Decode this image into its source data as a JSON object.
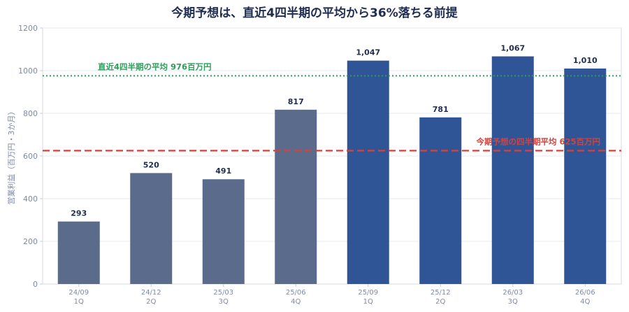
{
  "chart_data": {
    "type": "bar",
    "title": "今期予想は、直近4四半期の平均から36%落ちる前提",
    "ylabel": "営業利益（百万円・3か月）",
    "ylim": [
      0,
      1200
    ],
    "yticks": [
      0,
      200,
      400,
      600,
      800,
      1000,
      1200
    ],
    "grid": true,
    "categories": [
      {
        "period": "24/09",
        "quarter": "1Q"
      },
      {
        "period": "24/12",
        "quarter": "2Q"
      },
      {
        "period": "25/03",
        "quarter": "3Q"
      },
      {
        "period": "25/06",
        "quarter": "4Q"
      },
      {
        "period": "25/09",
        "quarter": "1Q"
      },
      {
        "period": "25/12",
        "quarter": "2Q"
      },
      {
        "period": "26/03",
        "quarter": "3Q"
      },
      {
        "period": "26/06",
        "quarter": "4Q"
      }
    ],
    "values": [
      293,
      520,
      491,
      817,
      1047,
      781,
      1067,
      1010
    ],
    "value_labels": [
      "293",
      "520",
      "491",
      "817",
      "1,047",
      "781",
      "1,067",
      "1,010"
    ],
    "bar_colors": [
      "#5b6b8c",
      "#5b6b8c",
      "#5b6b8c",
      "#5b6b8c",
      "#2f5597",
      "#2f5597",
      "#2f5597",
      "#2f5597"
    ],
    "reference_lines": [
      {
        "value": 976,
        "label": "直近4四半期の平均 976百万円",
        "color": "#2f9e5a",
        "style": "dotted"
      },
      {
        "value": 625,
        "label": "今期予想の四半期平均 625百万円",
        "color": "#d6413a",
        "style": "dashed"
      }
    ]
  }
}
